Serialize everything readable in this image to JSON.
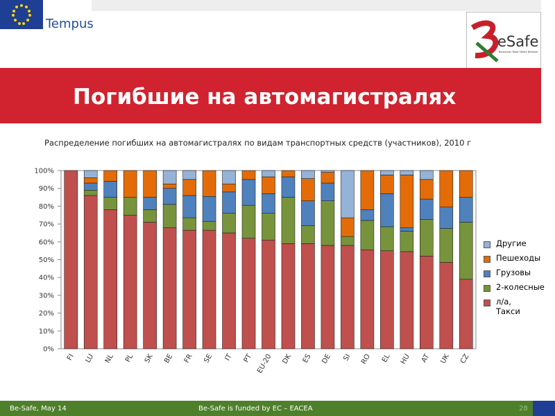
{
  "header": {
    "tempus": "Tempus",
    "esafe": "eSafe",
    "esafe_tagline": "Belarusian Road Safety Network",
    "title": "Погибшие на автомагистралях"
  },
  "chart_data": {
    "type": "bar",
    "stacked": true,
    "title": "Распределение погибших на автомагистралях по видам транспортных средств (участников), 2010 г",
    "categories": [
      "FI",
      "LU",
      "NL",
      "PL",
      "SK",
      "BE",
      "FR",
      "SE",
      "IT",
      "PT",
      "EU-20",
      "DK",
      "ES",
      "DE",
      "SI",
      "RO",
      "EL",
      "HU",
      "AT",
      "UK",
      "CZ"
    ],
    "series": [
      {
        "name": "л/а, Такси",
        "color": "#c0504d",
        "values": [
          100,
          86,
          78,
          75,
          71,
          68,
          66.5,
          66.5,
          65,
          62,
          61,
          59,
          59,
          58,
          58,
          55.5,
          55,
          54.5,
          52,
          48.5,
          39
        ]
      },
      {
        "name": "2-колесные",
        "color": "#77933c",
        "values": [
          0,
          3,
          7,
          10,
          7,
          13,
          7,
          5,
          11,
          18.5,
          15,
          26,
          10,
          25,
          5,
          16.5,
          13.5,
          11.5,
          20.5,
          19,
          32
        ]
      },
      {
        "name": "Грузовы",
        "color": "#4f81bd",
        "values": [
          0,
          4,
          9,
          0,
          7,
          9,
          12.5,
          14,
          12,
          14.5,
          11,
          11.5,
          14,
          10,
          0,
          6,
          18.5,
          2,
          11.5,
          12,
          14
        ]
      },
      {
        "name": "Пешеходы",
        "color": "#e36c09",
        "values": [
          0,
          3,
          6,
          15,
          15,
          2.5,
          9,
          14.5,
          4.5,
          5,
          9.5,
          3.5,
          12.5,
          6,
          10.5,
          22,
          10.5,
          29.5,
          11,
          20.5,
          15
        ]
      },
      {
        "name": "Другие",
        "color": "#95b3d7",
        "values": [
          0,
          4,
          0,
          0,
          0,
          7.5,
          5,
          0,
          7.5,
          0,
          3.5,
          0,
          4.5,
          1,
          26.5,
          0,
          2.5,
          2.5,
          5,
          0,
          0
        ]
      }
    ],
    "ylim": [
      0,
      100
    ],
    "yticks": [
      {
        "value": 0,
        "label": "0%"
      },
      {
        "value": 10,
        "label": "10%"
      },
      {
        "value": 20,
        "label": "20%"
      },
      {
        "value": 30,
        "label": "30%"
      },
      {
        "value": 40,
        "label": "40%"
      },
      {
        "value": 50,
        "label": "50%"
      },
      {
        "value": 60,
        "label": "60%"
      },
      {
        "value": 70,
        "label": "70%"
      },
      {
        "value": 80,
        "label": "80%"
      },
      {
        "value": 90,
        "label": "90%"
      },
      {
        "value": 100,
        "label": "100%"
      }
    ]
  },
  "footer": {
    "left": "Be-Safe, May 14",
    "center": "Be-Safe is funded by EC – EACEA",
    "page": "28"
  }
}
